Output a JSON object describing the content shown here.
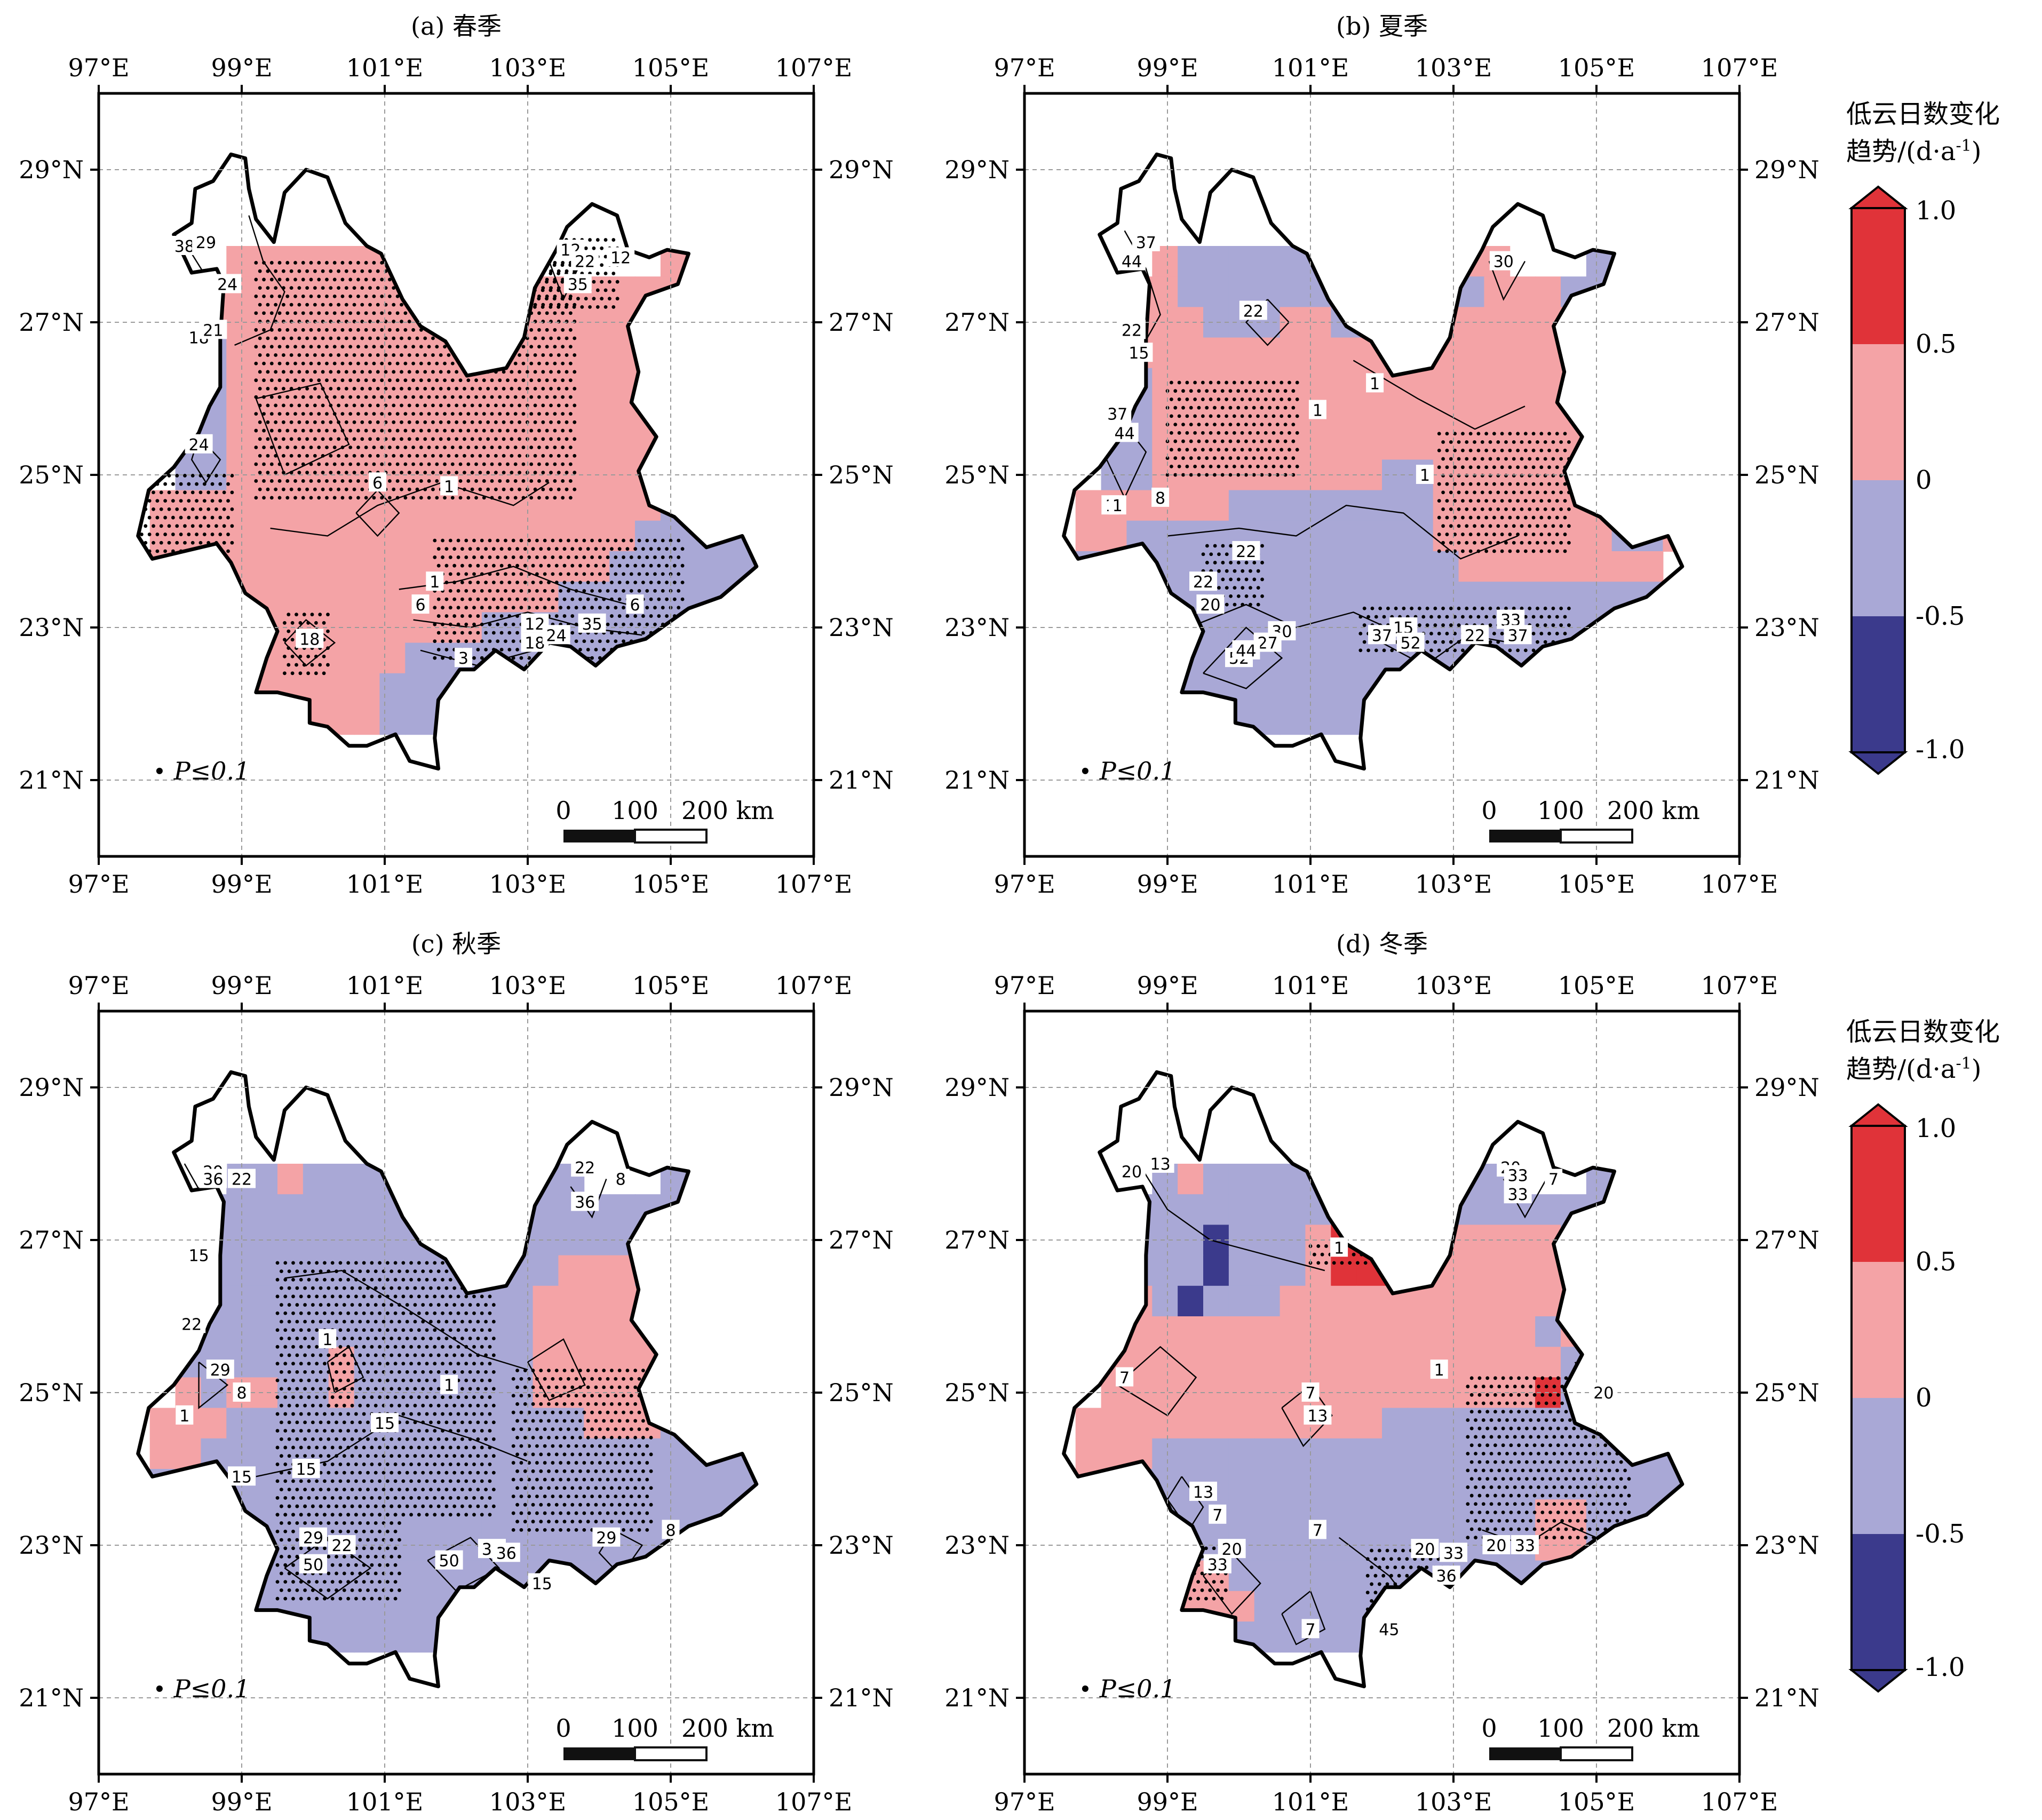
{
  "colors": {
    "strong_pos": "#e03339",
    "weak_pos": "#f4a3a6",
    "weak_neg": "#a9a8d6",
    "strong_neg": "#3b3a8c",
    "frame": "#000000",
    "grid": "#9a9a9a"
  },
  "panels": [
    {
      "title": "(a) 春季",
      "lon_ticks": [
        "97°E",
        "99°E",
        "101°E",
        "103°E",
        "105°E",
        "107°E"
      ],
      "lat_ticks": [
        "29°N",
        "27°N",
        "25°N",
        "23°N",
        "21°N"
      ],
      "legend_symbol": "•",
      "legend_text": "P≤0.1",
      "scale_labels": [
        "0",
        "100",
        "200 km"
      ],
      "contour_labels": [
        "38",
        "29",
        "24",
        "18",
        "21",
        "24",
        "12",
        "22",
        "35",
        "12",
        "6",
        "1",
        "1",
        "6",
        "18",
        "12",
        "18",
        "24",
        "35",
        "6",
        "3"
      ],
      "fill_map": [
        "nnnnnnnnnnnnnnnnnnnnnnnnnnnn",
        "nnnnnnnnnnnnnnnnnnnnnnnnnnnn",
        "nnnnnnnnnnnnnnnnnnnnnnnnnnnn",
        "nnnnnnnnnnnnnnnnnnnnnnnnnnnn",
        "nnnnnnnnnnnnnnnnnnnnnnnnnnnn",
        "nnnnnPPPPPPPPPPPnnnnnnPPPPnn",
        "nnnnPPPPPPPPPPPPPPPPPPPPPPnn",
        "nnnnPPPPPPPPPPPPPPPPPPPPnnnn",
        "nnnnbPPPPPPPPPPPPPPPPPPPnnnn",
        "nnnnbPPPPPPPPPPPPPPPPPPPnnnn",
        "nnnnbPPPPPPPPPPPPPPPPPPPnnnn",
        "nnnbbPPPPPPPPPPPPPPPPPPbnnnn",
        "nnnbbPPPPPPPPPPPPPPPPPPbnnnn",
        "nnPPPPPPPPPPPPPPPPPPPPbbbnnn",
        "nnPPPPPPPPPPPPPPPPPPPbbbbbnn",
        "nnPPPPPPPPPPPPPPPPPPbbbbbbnn",
        "nnnPPPPPPPPPPPPPPPbbbbbbbnnn",
        "nnnPPPPPPPPPPPPbbbbbbbbbnnnn",
        "nnnnnPPPPPPPbbbbbbbbbnnnnnnn",
        "nnnnnPPPPPPbbbbbbnnnnnnnnnnn",
        "nnnnnnPPPPPbbbbnnnnnnnnnnnnn",
        "nnnnnnnnnnnnnnnnnnnnnnnnnnnn",
        "nnnnnnnnnnnnnnnnnnnnnnnnnnnn",
        "nnnnnnnnnnnnnnnnnnnnnnnnnnnn",
        "nnnnnnnnnnnnnnnnnnnnnnnnnnnn"
      ]
    },
    {
      "title": "(b) 夏季",
      "lon_ticks": [
        "97°E",
        "99°E",
        "101°E",
        "103°E",
        "105°E",
        "107°E"
      ],
      "lat_ticks": [
        "29°N",
        "27°N",
        "25°N",
        "23°N",
        "21°N"
      ],
      "legend_symbol": "•",
      "legend_text": "P≤0.1",
      "scale_labels": [
        "0",
        "100",
        "200 km"
      ],
      "contour_labels": [
        "37",
        "44",
        "22",
        "22",
        "15",
        "30",
        "1",
        "1",
        "1",
        "37",
        "44",
        "1",
        "8",
        "1",
        "22",
        "22",
        "20",
        "30",
        "27",
        "52",
        "15",
        "22",
        "33",
        "37",
        "52",
        "44",
        "37"
      ],
      "fill_map": [
        "nnnnnnnnnnnnnnnnnnnnnnnnnnnn",
        "nnnnnnnnnnnnnnnnnnnnnnnnnnnn",
        "nnnnnnnnnnnnnnnnnnnnnnnnnnnn",
        "nnnnnnnnnnnnnnnnnnnnnnnnnnnn",
        "nnnnnnnnnnnnnnnnnnnnnnnnnnnn",
        "nnnnnPbbbbbbbbbbPPPnnnbbPPnn",
        "nnnnPPbbbbbbbbbbbbPPPbbbbPnn",
        "nnnnPPPbbbPPbbbPPPPPPPPPnnnn",
        "nnnnPPPPPPPPPPPPPPPPPPPPnnnn",
        "nnnnbPPPPPPPPPPPPPPPPPPPnnnn",
        "nnnnbPPPPPPPPPPPPPPPPPPPnnnn",
        "nnnbbPPPPPPPPPPPPPPPPPPPnnnn",
        "nnnbbPPPPPPPPPbbPPPPPPPPnnnn",
        "nnPPPPPPbbbbbbbbPPPPPPPPPnnn",
        "nnPPbbbbbbbbbbbbPPPPPPPbbPnn",
        "nnbbbbbbbbbbbbbbbPPPPPPPPnnn",
        "nnnbbbbbbbbbbbbbbbbbbbbbbnnn",
        "nnnbbbbbbbbbbbbbbbbbbbbbnnnn",
        "nnnnnbbbbbbbbbbbbbbbbnnnnnnn",
        "nnnnnbbbbbbbbbbbbnnnnnnnnnnn",
        "nnnnnnbbbbbbbbbnnnnnnnnnnnnn",
        "nnnnnnnnnnnnnnnnnnnnnnnnnnnn",
        "nnnnnnnnnnnnnnnnnnnnnnnnnnnn",
        "nnnnnnnnnnnnnnnnnnnnnnnnnnnn",
        "nnnnnnnnnnnnnnnnnnnnnnnnnnnn"
      ]
    },
    {
      "title": "(c) 秋季",
      "lon_ticks": [
        "97°E",
        "99°E",
        "101°E",
        "103°E",
        "105°E",
        "107°E"
      ],
      "lat_ticks": [
        "29°N",
        "27°N",
        "25°N",
        "23°N",
        "21°N"
      ],
      "legend_symbol": "•",
      "legend_text": "P≤0.1",
      "scale_labels": [
        "0",
        "100",
        "200 km"
      ],
      "contour_labels": [
        "29",
        "36",
        "22",
        "15",
        "22",
        "15",
        "36",
        "8",
        "22",
        "29",
        "1",
        "8",
        "1",
        "15",
        "1",
        "15",
        "22",
        "29",
        "50",
        "36",
        "50",
        "36",
        "15",
        "29",
        "8"
      ],
      "fill_map": [
        "nnnnnnnnnnnnnnnnnnnnnnnnnnnn",
        "nnnnnnnnnnnnnnnnnnnnnnnnnnnn",
        "nnnnnnnnnnnnnnnnnnnnnnnnnnnn",
        "nnnnnnnnnnnnnnnnnnnnnnnnnnnn",
        "nnnnnnnnnnnnnnnnnnnnnnnnnnnn",
        "nnnnnbbPbbbbbbbbbbbnnnbbbbnn",
        "nnnnbbbbbbbbbbbbbbbbbbbbbbnn",
        "nnnnbbbbbbbbbbbbbbbbbbbbnnnn",
        "nnnnbbbbbbbbbbbbbbPPPbbbnnnn",
        "nnnnbbbbbbbbbbbbbPPPPPbbnnnn",
        "nnnnbbbbbbbbbbbbbPPPPPbbnnnn",
        "nnnbbbbbbPbbbbbbbPPPPPbbnnnn",
        "nnnPbPPbbPbbbbbbbPPPPPbbnnnn",
        "nnPPPbbbbbbbbbbbbbbPPPbbbnnn",
        "nnPPbbbbbbbbbbbbbbbbbbbbbbnn",
        "nnbbbbbbbbbbbbbbbbbbbbbbbbnn",
        "nnnbbbbbbbbbbbbbbbbbbbbbbnnn",
        "nnnbbbbbbbbbbbbbbbbbbbbbnnnn",
        "nnnnnbbbbbbbbbbbbbbbbnnnnnnn",
        "nnnnnbbbbbbbbbbbbnnnnnnnnnnn",
        "nnnnnnbbbbbbbbbnnnnnnnnnnnnn",
        "nnnnnnnnnnnnnnnnnnnnnnnnnnnn",
        "nnnnnnnnnnnnnnnnnnnnnnnnnnnn",
        "nnnnnnnnnnnnnnnnnnnnnnnnnnnn",
        "nnnnnnnnnnnnnnnnnnnnnnnnnnnn"
      ]
    },
    {
      "title": "(d) 冬季",
      "lon_ticks": [
        "97°E",
        "99°E",
        "101°E",
        "103°E",
        "105°E",
        "107°E"
      ],
      "lat_ticks": [
        "29°N",
        "27°N",
        "25°N",
        "23°N",
        "21°N"
      ],
      "legend_symbol": "•",
      "legend_text": "P≤0.1",
      "scale_labels": [
        "0",
        "100",
        "200 km"
      ],
      "contour_labels": [
        "13",
        "20",
        "20",
        "33",
        "7",
        "1",
        "7",
        "20",
        "7",
        "13",
        "1",
        "13",
        "20",
        "33",
        "7",
        "33",
        "20",
        "33",
        "7",
        "36",
        "20",
        "45",
        "33",
        "7"
      ],
      "fill_map": [
        "nnnnnnnnnnnnnnnnnnnnnnnnnnnn",
        "nnnnnnnnnnnnnnnnnnnnnnnnnnnn",
        "nnnnnnnnnnnnnnnnnnnnnnnnnnnn",
        "nnnnnnnnnnnnnnnnnnnnnnnnnnnn",
        "nnnnnnnnnnnnnnnnnnnnnnnnnnnn",
        "nnnnnbPbbbbbbbbbbbbnnnbbPPnn",
        "nnnnbbbbbbbbbbbbbbbbbbbPPbnn",
        "nnnnbbbBbbbPRRRbPPPPPbbbnnnn",
        "nnnnbbbBbbbPRRRRPPPPPPPbnnnn",
        "nnnnPbBbbbPPPPPPPPPPPPPbnnnn",
        "nnnnPPPPPPPPPPPPPPPPbPPbnnnn",
        "nnnPPPPPPPPPPPPPPPPPPbbbnnnn",
        "nnnPPPPPPPPPPPPPPPPPRbbbnnnn",
        "nnPPPPPPPPPPPPbbbbbbbbbbbnnn",
        "nnPPPbbbbbbbbbbbbbbbbbbbbbnn",
        "nnPPbbbbbbbbbbbbbbbbbbbbbbnn",
        "nnnPPbbbbbbbbbbbbbbbPPbbbnnn",
        "nnnPPPbbbbbbbbbbbbbbPPbbnnnn",
        "nnnnnPPPbbbbbbbbbbbbbnnnnnnn",
        "nnnnnPPPPbbbbbbbbnnnnnnnnnnn",
        "nnnnnnPPbbbbbbbbbnnnnnnnnnnn",
        "nnnnnnnnnnnnnnnnnnnnnnnnnnnn",
        "nnnnnnnnnnnnnnnnnnnnnnnnnnnn",
        "nnnnnnnnnnnnnnnnnnnnnnnnnnnn",
        "nnnnnnnnnnnnnnnnnnnnnnnnnnnn"
      ]
    }
  ],
  "colorbars": [
    {
      "title_line1": "低云日数变化",
      "title_line2": "趋势/(d·a",
      "title_sup": "-1",
      "title_close": ")",
      "tick_labels": [
        "1.0",
        "0.5",
        "0",
        "-0.5",
        "-1.0"
      ]
    },
    {
      "title_line1": "低云日数变化",
      "title_line2": "趋势/(d·a",
      "title_sup": "-1",
      "title_close": ")",
      "tick_labels": [
        "1.0",
        "0.5",
        "0",
        "-0.5",
        "-1.0"
      ]
    }
  ]
}
